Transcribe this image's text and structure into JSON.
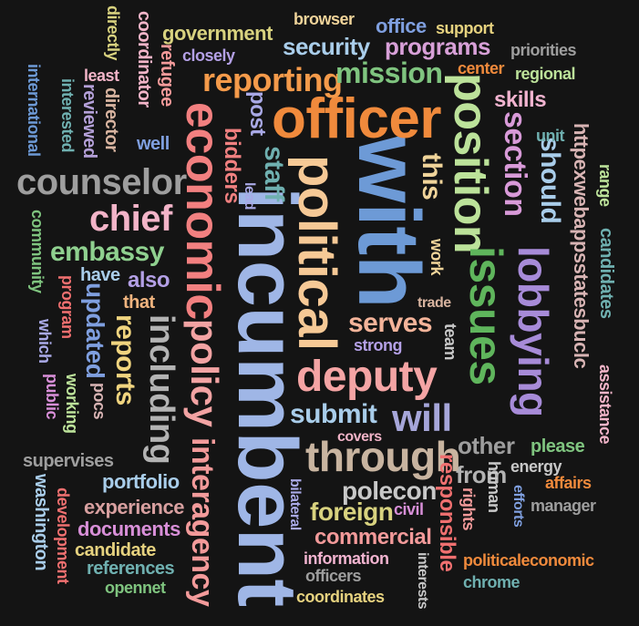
{
  "words": [
    {
      "text": "incumbent",
      "color": "#9fb6e6"
    },
    {
      "text": "with",
      "color": "#6d9ad6"
    },
    {
      "text": "officer",
      "color": "#f08a3c"
    },
    {
      "text": "political",
      "color": "#f6c996"
    },
    {
      "text": "economic",
      "color": "#f28080"
    },
    {
      "text": "position",
      "color": "#bce29a"
    },
    {
      "text": "issues",
      "color": "#5fb55c"
    },
    {
      "text": "lobbying",
      "color": "#a78bd8"
    },
    {
      "text": "deputy",
      "color": "#f4a4a4"
    },
    {
      "text": "through",
      "color": "#c8b4a0"
    },
    {
      "text": "counselor",
      "color": "#9e9e9e"
    },
    {
      "text": "policy",
      "color": "#f2a3a3"
    },
    {
      "text": "chief",
      "color": "#f2b4c8"
    },
    {
      "text": "including",
      "color": "#b3b3b3"
    },
    {
      "text": "reporting",
      "color": "#f49a4a"
    },
    {
      "text": "section",
      "color": "#d89ad8"
    },
    {
      "text": "interagency",
      "color": "#f29a9a"
    },
    {
      "text": "mission",
      "color": "#7fc47f"
    },
    {
      "text": "submit",
      "color": "#a9cdea"
    },
    {
      "text": "reports",
      "color": "#f0d47f"
    },
    {
      "text": "will",
      "color": "#a6a6d9"
    },
    {
      "text": "embassy",
      "color": "#8fd08f"
    },
    {
      "text": "updated",
      "color": "#7f9fdf"
    },
    {
      "text": "serves",
      "color": "#f4b49a"
    },
    {
      "text": "staff",
      "color": "#6fb0b0"
    },
    {
      "text": "this",
      "color": "#f0d49a"
    },
    {
      "text": "should",
      "color": "#a9cdea"
    },
    {
      "text": "other",
      "color": "#9e9e9e"
    },
    {
      "text": "polecon",
      "color": "#c8c8c8"
    },
    {
      "text": "foreign",
      "color": "#d8d27f"
    },
    {
      "text": "commercial",
      "color": "#f29a9a"
    },
    {
      "text": "programs",
      "color": "#d8a0d8"
    },
    {
      "text": "security",
      "color": "#a9cdea"
    },
    {
      "text": "bidders",
      "color": "#f08080"
    },
    {
      "text": "post",
      "color": "#a9a9e6"
    },
    {
      "text": "skills",
      "color": "#f2b4d0"
    },
    {
      "text": "httpexwebappsstatesbuclc",
      "color": "#d8b4b4"
    },
    {
      "text": "range",
      "color": "#bce29a"
    },
    {
      "text": "candidates",
      "color": "#6fb0b0"
    },
    {
      "text": "from",
      "color": "#b3b3b3"
    },
    {
      "text": "responsible",
      "color": "#f07070"
    },
    {
      "text": "portfolio",
      "color": "#a9cdea"
    },
    {
      "text": "experience",
      "color": "#d8a0a0"
    },
    {
      "text": "documents",
      "color": "#d88fd8"
    },
    {
      "text": "candidate",
      "color": "#e6d27f"
    },
    {
      "text": "references",
      "color": "#6fb0b0"
    },
    {
      "text": "supervises",
      "color": "#9e9e9e"
    },
    {
      "text": "information",
      "color": "#f2b4d0"
    },
    {
      "text": "officers",
      "color": "#9e9e9e"
    },
    {
      "text": "coordinates",
      "color": "#e6d27f"
    },
    {
      "text": "government",
      "color": "#d8d27f"
    },
    {
      "text": "browser",
      "color": "#f0d49a"
    },
    {
      "text": "office",
      "color": "#7f9fdf"
    },
    {
      "text": "support",
      "color": "#e6d27f"
    },
    {
      "text": "priorities",
      "color": "#9e9e9e"
    },
    {
      "text": "center",
      "color": "#f08a3c"
    },
    {
      "text": "regional",
      "color": "#bce29a"
    },
    {
      "text": "closely",
      "color": "#b4a0e6"
    },
    {
      "text": "least",
      "color": "#f2b4c8"
    },
    {
      "text": "coordinator",
      "color": "#f2b4c8"
    },
    {
      "text": "refugee",
      "color": "#f49a9a"
    },
    {
      "text": "directly",
      "color": "#d8d27f"
    },
    {
      "text": "international",
      "color": "#6d9ad6"
    },
    {
      "text": "interested",
      "color": "#6fb0b0"
    },
    {
      "text": "reviewed",
      "color": "#b4a0d8"
    },
    {
      "text": "director",
      "color": "#d8b4a0"
    },
    {
      "text": "well",
      "color": "#7f9fdf"
    },
    {
      "text": "unit",
      "color": "#6fb0b0"
    },
    {
      "text": "lead",
      "color": "#a9a9e6"
    },
    {
      "text": "work",
      "color": "#f0d49a"
    },
    {
      "text": "trade",
      "color": "#d8b4a0"
    },
    {
      "text": "team",
      "color": "#c8c8c8"
    },
    {
      "text": "strong",
      "color": "#b4a0e6"
    },
    {
      "text": "community",
      "color": "#7fc47f"
    },
    {
      "text": "have",
      "color": "#a9cdea"
    },
    {
      "text": "also",
      "color": "#b4a0e6"
    },
    {
      "text": "that",
      "color": "#f0b47f"
    },
    {
      "text": "program",
      "color": "#f07070"
    },
    {
      "text": "which",
      "color": "#a9a9e6"
    },
    {
      "text": "public",
      "color": "#d88fd8"
    },
    {
      "text": "working",
      "color": "#bce29a"
    },
    {
      "text": "pocs",
      "color": "#d8b4b4"
    },
    {
      "text": "covers",
      "color": "#f2b4c8"
    },
    {
      "text": "please",
      "color": "#7fc47f"
    },
    {
      "text": "energy",
      "color": "#c8c8c8"
    },
    {
      "text": "affairs",
      "color": "#f08a3c"
    },
    {
      "text": "efforts",
      "color": "#7f9fdf"
    },
    {
      "text": "manager",
      "color": "#9e9e9e"
    },
    {
      "text": "human",
      "color": "#c8c8c8"
    },
    {
      "text": "rights",
      "color": "#f29a9a"
    },
    {
      "text": "civil",
      "color": "#d88fd8"
    },
    {
      "text": "bilateral",
      "color": "#a9a9e6"
    },
    {
      "text": "washington",
      "color": "#a9cdea"
    },
    {
      "text": "development",
      "color": "#f07070"
    },
    {
      "text": "opennet",
      "color": "#7fc47f"
    },
    {
      "text": "interests",
      "color": "#c8c8c8"
    },
    {
      "text": "politicaleconomic",
      "color": "#f08a3c"
    },
    {
      "text": "chrome",
      "color": "#6fb0b0"
    },
    {
      "text": "assistance",
      "color": "#f2b4c8"
    }
  ]
}
